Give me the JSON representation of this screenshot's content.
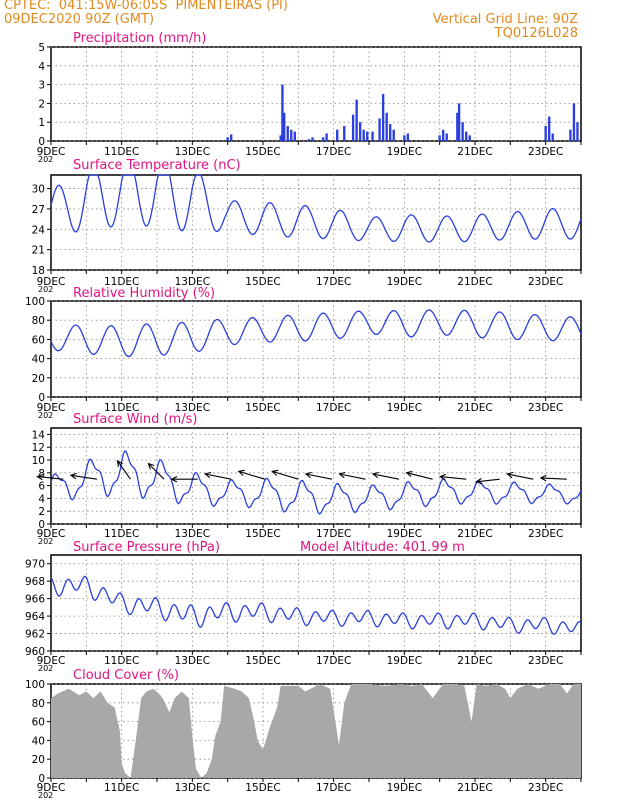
{
  "header": {
    "line1": "CPTEC:  041:15W-06:05S  PIMENTEIRAS (PI)",
    "line2": "09DEC2020 90Z (GMT)",
    "right1": "Vertical Grid Line: 90Z",
    "right2": "TQ0126L028"
  },
  "colors": {
    "header": "#e08a1e",
    "title": "#e0147f",
    "line": "#2b3fe0",
    "cloud": "#a8a8a8",
    "wind_vector": "#000000"
  },
  "date_labels": [
    "9DEC",
    "11DEC",
    "13DEC",
    "15DEC",
    "17DEC",
    "19DEC",
    "21DEC",
    "23DEC"
  ],
  "year_stub": "202",
  "chart_data": [
    {
      "type": "bar",
      "title": "Precipitation (mm/h)",
      "ylim": [
        0,
        5
      ],
      "yticks": [
        0,
        1,
        2,
        3,
        4,
        5
      ],
      "x_range_days": [
        0,
        15
      ],
      "events": [
        {
          "day": 5.0,
          "v": 0.2
        },
        {
          "day": 5.1,
          "v": 0.35
        },
        {
          "day": 6.5,
          "v": 0.3
        },
        {
          "day": 6.55,
          "v": 3.0
        },
        {
          "day": 6.6,
          "v": 1.5
        },
        {
          "day": 6.7,
          "v": 0.8
        },
        {
          "day": 6.8,
          "v": 0.6
        },
        {
          "day": 6.9,
          "v": 0.5
        },
        {
          "day": 7.3,
          "v": 0.1
        },
        {
          "day": 7.4,
          "v": 0.2
        },
        {
          "day": 7.7,
          "v": 0.2
        },
        {
          "day": 7.8,
          "v": 0.4
        },
        {
          "day": 8.1,
          "v": 0.6
        },
        {
          "day": 8.3,
          "v": 0.8
        },
        {
          "day": 8.55,
          "v": 1.4
        },
        {
          "day": 8.65,
          "v": 2.2
        },
        {
          "day": 8.75,
          "v": 1.0
        },
        {
          "day": 8.85,
          "v": 0.6
        },
        {
          "day": 8.95,
          "v": 0.5
        },
        {
          "day": 9.1,
          "v": 0.5
        },
        {
          "day": 9.3,
          "v": 1.2
        },
        {
          "day": 9.4,
          "v": 2.5
        },
        {
          "day": 9.5,
          "v": 1.5
        },
        {
          "day": 9.6,
          "v": 0.9
        },
        {
          "day": 9.7,
          "v": 0.6
        },
        {
          "day": 10.0,
          "v": 0.3
        },
        {
          "day": 10.1,
          "v": 0.4
        },
        {
          "day": 11.0,
          "v": 0.3
        },
        {
          "day": 11.1,
          "v": 0.6
        },
        {
          "day": 11.2,
          "v": 0.4
        },
        {
          "day": 11.5,
          "v": 1.5
        },
        {
          "day": 11.55,
          "v": 2.0
        },
        {
          "day": 11.65,
          "v": 1.0
        },
        {
          "day": 11.75,
          "v": 0.5
        },
        {
          "day": 11.85,
          "v": 0.3
        },
        {
          "day": 14.0,
          "v": 0.8
        },
        {
          "day": 14.1,
          "v": 1.3
        },
        {
          "day": 14.2,
          "v": 0.4
        },
        {
          "day": 14.7,
          "v": 0.6
        },
        {
          "day": 14.8,
          "v": 2.0
        },
        {
          "day": 14.9,
          "v": 1.0
        }
      ]
    },
    {
      "type": "line",
      "title": "Surface Temperature (nC)",
      "ylim": [
        18,
        32
      ],
      "yticks": [
        18,
        21,
        24,
        27,
        30
      ],
      "base": [
        26.5,
        28.5,
        29.6,
        29.6,
        28.5,
        26.0,
        25.5,
        25.2,
        24.8,
        24.0,
        24.2,
        24.0,
        24.2,
        24.5,
        24.8,
        24.8
      ],
      "amp": [
        6.5,
        9.5,
        10.0,
        10.4,
        10.0,
        4.5,
        5.0,
        4.8,
        4.5,
        3.5,
        4.0,
        3.8,
        4.0,
        4.0,
        4.5,
        4.5
      ]
    },
    {
      "type": "line",
      "title": "Relative Humidity (%)",
      "ylim": [
        0,
        100
      ],
      "yticks": [
        0,
        20,
        40,
        60,
        80,
        100
      ],
      "base": [
        62,
        60,
        58,
        60,
        62,
        68,
        70,
        72,
        74,
        78,
        76,
        78,
        76,
        74,
        72,
        70
      ],
      "amp": [
        26,
        30,
        32,
        34,
        32,
        28,
        26,
        28,
        28,
        24,
        28,
        26,
        28,
        28,
        26,
        26
      ]
    },
    {
      "type": "line",
      "title": "Surface Wind (m/s)",
      "ylim": [
        0,
        15
      ],
      "yticks": [
        0,
        2,
        4,
        6,
        8,
        10,
        12,
        14
      ],
      "base": [
        5.5,
        7.0,
        8.0,
        7.0,
        5.5,
        4.8,
        4.8,
        4.2,
        4.0,
        4.0,
        4.5,
        5.0,
        5.0,
        4.8,
        4.8,
        4.5
      ],
      "amp": [
        3.5,
        5.0,
        6.0,
        5.5,
        4.5,
        3.5,
        4.0,
        4.5,
        4.0,
        3.5,
        3.5,
        3.5,
        3.0,
        3.0,
        2.5,
        2.5
      ],
      "vectors": [
        {
          "day": 0.35,
          "u": -1.0,
          "v": 0.1
        },
        {
          "day": 1.3,
          "u": -1.0,
          "v": 0.15
        },
        {
          "day": 2.25,
          "u": -0.5,
          "v": 0.7
        },
        {
          "day": 3.2,
          "u": -0.6,
          "v": 0.6
        },
        {
          "day": 4.15,
          "u": -1.0,
          "v": 0.0
        },
        {
          "day": 5.1,
          "u": -1.0,
          "v": 0.2
        },
        {
          "day": 6.05,
          "u": -1.0,
          "v": 0.3
        },
        {
          "day": 7.0,
          "u": -1.0,
          "v": 0.3
        },
        {
          "day": 7.95,
          "u": -1.0,
          "v": 0.2
        },
        {
          "day": 8.9,
          "u": -1.0,
          "v": 0.2
        },
        {
          "day": 9.85,
          "u": -1.0,
          "v": 0.2
        },
        {
          "day": 10.8,
          "u": -1.0,
          "v": 0.25
        },
        {
          "day": 11.75,
          "u": -1.0,
          "v": 0.1
        },
        {
          "day": 12.7,
          "u": -0.9,
          "v": -0.1
        },
        {
          "day": 13.65,
          "u": -1.0,
          "v": 0.2
        },
        {
          "day": 14.6,
          "u": -1.0,
          "v": 0.05
        }
      ]
    },
    {
      "type": "line",
      "title": "Surface Pressure (hPa)",
      "annotation": "Model Altitude: 401.99 m",
      "ylim": [
        960,
        971
      ],
      "yticks": [
        960,
        962,
        964,
        966,
        968,
        970
      ],
      "base": [
        967.5,
        967.5,
        965.5,
        965.0,
        964.0,
        964.5,
        964.5,
        964.0,
        963.8,
        963.8,
        963.5,
        963.5,
        963.5,
        963.0,
        963.0,
        962.5
      ],
      "amp": [
        2.5,
        2.5,
        2.5,
        2.6,
        3.0,
        2.5,
        2.4,
        2.2,
        2.0,
        2.0,
        2.0,
        2.0,
        2.0,
        2.0,
        2.0,
        2.0
      ]
    },
    {
      "type": "area",
      "title": "Cloud Cover (%)",
      "ylim": [
        0,
        100
      ],
      "yticks": [
        0,
        20,
        40,
        60,
        80,
        100
      ],
      "points": [
        [
          0.0,
          85
        ],
        [
          0.2,
          90
        ],
        [
          0.5,
          95
        ],
        [
          0.8,
          88
        ],
        [
          1.0,
          92
        ],
        [
          1.2,
          85
        ],
        [
          1.4,
          92
        ],
        [
          1.6,
          80
        ],
        [
          1.8,
          75
        ],
        [
          1.95,
          50
        ],
        [
          2.0,
          15
        ],
        [
          2.1,
          5
        ],
        [
          2.25,
          0
        ],
        [
          2.4,
          40
        ],
        [
          2.55,
          85
        ],
        [
          2.7,
          92
        ],
        [
          2.9,
          95
        ],
        [
          3.1,
          88
        ],
        [
          3.2,
          82
        ],
        [
          3.35,
          70
        ],
        [
          3.5,
          85
        ],
        [
          3.7,
          92
        ],
        [
          3.9,
          85
        ],
        [
          4.0,
          45
        ],
        [
          4.1,
          10
        ],
        [
          4.25,
          0
        ],
        [
          4.4,
          5
        ],
        [
          4.55,
          20
        ],
        [
          4.65,
          45
        ],
        [
          4.8,
          60
        ],
        [
          4.9,
          98
        ],
        [
          5.2,
          95
        ],
        [
          5.4,
          92
        ],
        [
          5.6,
          85
        ],
        [
          5.75,
          60
        ],
        [
          5.85,
          40
        ],
        [
          6.0,
          30
        ],
        [
          6.2,
          55
        ],
        [
          6.4,
          75
        ],
        [
          6.5,
          98
        ],
        [
          7.0,
          98
        ],
        [
          7.2,
          92
        ],
        [
          7.4,
          96
        ],
        [
          7.6,
          100
        ],
        [
          7.9,
          95
        ],
        [
          8.05,
          60
        ],
        [
          8.15,
          35
        ],
        [
          8.3,
          80
        ],
        [
          8.5,
          100
        ],
        [
          9.0,
          100
        ],
        [
          9.5,
          98
        ],
        [
          9.9,
          100
        ],
        [
          10.2,
          98
        ],
        [
          10.5,
          100
        ],
        [
          10.8,
          85
        ],
        [
          11.1,
          100
        ],
        [
          11.5,
          100
        ],
        [
          11.7,
          98
        ],
        [
          11.9,
          60
        ],
        [
          12.05,
          100
        ],
        [
          12.3,
          98
        ],
        [
          12.6,
          100
        ],
        [
          12.85,
          95
        ],
        [
          13.0,
          85
        ],
        [
          13.2,
          95
        ],
        [
          13.5,
          100
        ],
        [
          13.8,
          95
        ],
        [
          14.1,
          100
        ],
        [
          14.4,
          100
        ],
        [
          14.6,
          90
        ],
        [
          14.8,
          100
        ],
        [
          15.0,
          100
        ]
      ]
    }
  ]
}
